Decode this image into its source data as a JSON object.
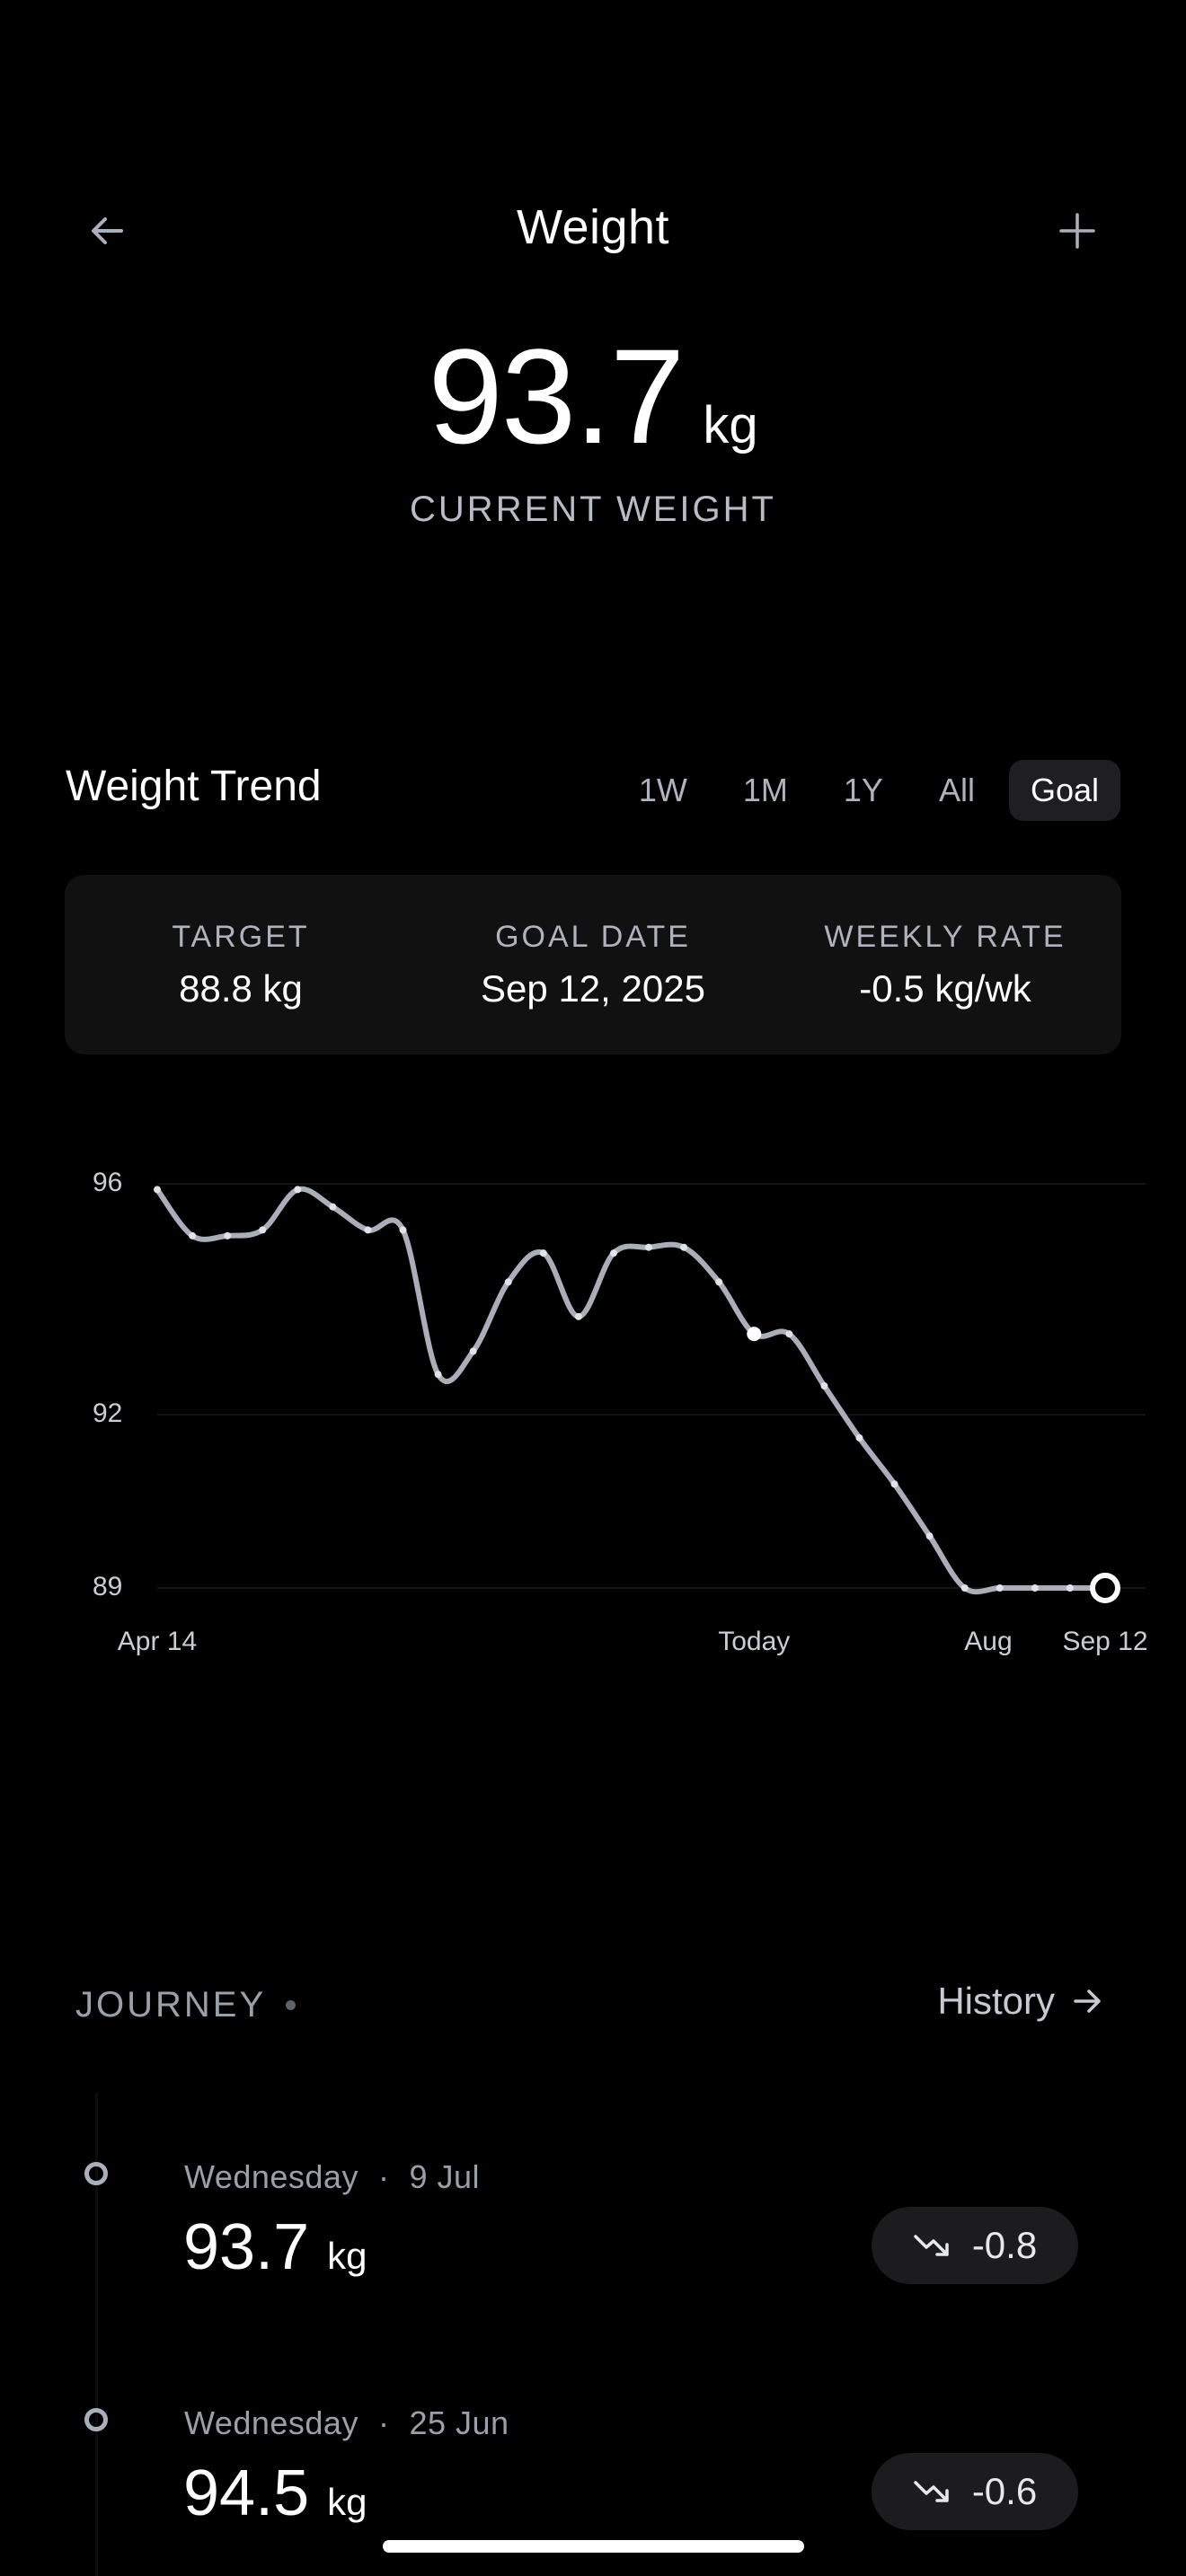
{
  "header": {
    "title": "Weight",
    "back_icon": "arrow-left-icon",
    "add_icon": "plus-icon"
  },
  "current": {
    "value": "93.7",
    "unit": "kg",
    "label": "CURRENT WEIGHT"
  },
  "trend": {
    "title": "Weight Trend",
    "tabs": [
      {
        "label": "1W",
        "active": false
      },
      {
        "label": "1M",
        "active": false
      },
      {
        "label": "1Y",
        "active": false
      },
      {
        "label": "All",
        "active": false
      },
      {
        "label": "Goal",
        "active": true
      }
    ],
    "stats": [
      {
        "label": "TARGET",
        "value": "88.8 kg"
      },
      {
        "label": "GOAL DATE",
        "value": "Sep 12, 2025"
      },
      {
        "label": "WEEKLY RATE",
        "value": "-0.5 kg/wk"
      }
    ]
  },
  "chart_data": {
    "type": "line",
    "title": "",
    "xlabel": "",
    "ylabel": "",
    "y_ticks": [
      96,
      92,
      89
    ],
    "ylim": [
      89,
      96
    ],
    "x_ticks": [
      "Apr 14",
      "Today",
      "Aug",
      "Sep 12"
    ],
    "grid": true,
    "series": [
      {
        "x": [
          0,
          3,
          6,
          9,
          12,
          15,
          18,
          21,
          24,
          27,
          30,
          33,
          36,
          39,
          42,
          45,
          48,
          51,
          54,
          57,
          60,
          63,
          66,
          69,
          72,
          75,
          78,
          81
        ],
        "values": [
          95.9,
          95.1,
          95.1,
          95.2,
          95.9,
          95.6,
          95.2,
          95.2,
          92.7,
          93.1,
          94.3,
          94.8,
          93.7,
          94.8,
          94.9,
          94.9,
          94.3,
          93.4,
          93.4,
          92.5,
          91.6,
          90.8,
          89.9,
          89.0,
          89.0,
          89.0,
          89.0,
          89.0
        ],
        "projected_from_index": 17
      }
    ],
    "line_color": "#a9aeb8",
    "today_index": 17,
    "goal_value": 88.8
  },
  "journey": {
    "title": "JOURNEY",
    "history_label": "History",
    "history_icon": "arrow-right-icon",
    "entries": [
      {
        "day": "Wednesday",
        "date": "9 Jul",
        "value": "93.7",
        "unit": "kg",
        "delta": "-0.8",
        "delta_icon": "trend-down-icon"
      },
      {
        "day": "Wednesday",
        "date": "25 Jun",
        "value": "94.5",
        "unit": "kg",
        "delta": "-0.6",
        "delta_icon": "trend-down-icon"
      }
    ]
  }
}
